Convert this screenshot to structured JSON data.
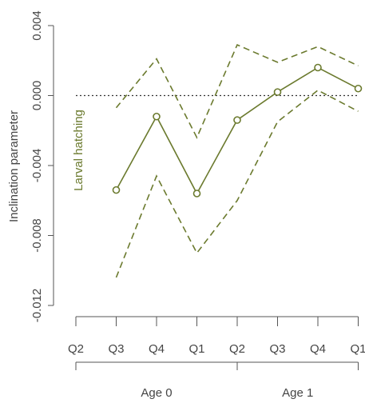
{
  "chart_data": {
    "type": "line",
    "ylabel": "Inclination parameter",
    "ylim": [
      -0.012,
      0.004
    ],
    "yticks": [
      -0.012,
      -0.008,
      -0.004,
      0.0,
      0.004
    ],
    "ytick_labels": [
      "-0.012",
      "-0.008",
      "-0.004",
      "0.000",
      "0.004"
    ],
    "categories": [
      "Q2",
      "Q3",
      "Q4",
      "Q1",
      "Q2",
      "Q3",
      "Q4",
      "Q1"
    ],
    "groups": [
      {
        "label": "Age 0",
        "start": 0,
        "end": 4
      },
      {
        "label": "Age 1",
        "start": 4,
        "end": 7
      }
    ],
    "reference_line": 0.0,
    "annotation": "Larval hatching",
    "color": "#6b7a2e",
    "series": [
      {
        "role": "estimate",
        "values": [
          null,
          -0.0054,
          -0.0012,
          -0.0056,
          -0.0014,
          0.0002,
          0.0016,
          0.0004
        ]
      },
      {
        "role": "upper",
        "values": [
          null,
          -0.0007,
          0.0021,
          -0.0024,
          0.0029,
          0.0019,
          0.0028,
          0.0017
        ]
      },
      {
        "role": "lower",
        "values": [
          null,
          -0.0104,
          -0.0046,
          -0.009,
          -0.006,
          -0.0015,
          0.0003,
          -0.0009
        ]
      }
    ]
  }
}
